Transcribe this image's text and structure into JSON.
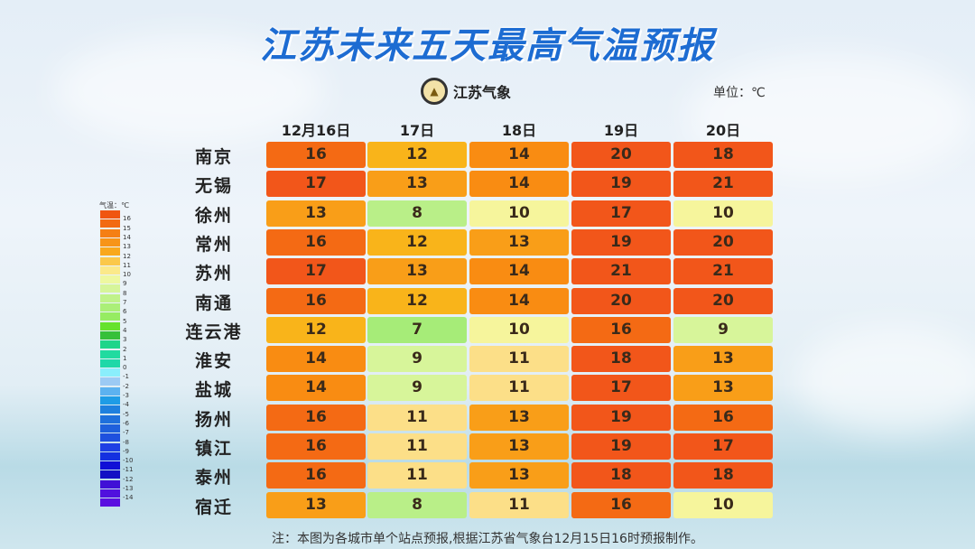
{
  "title": "江苏未来五天最高气温预报",
  "logo_text": "江苏气象",
  "unit_label": "单位：℃",
  "footnote": "注：本图为各城市单个站点预报,根据江苏省气象台12月15日16时预报制作。",
  "legend": {
    "title": "气温：℃",
    "labels": [
      "16",
      "15",
      "14",
      "13",
      "12",
      "11",
      "10",
      "9",
      "8",
      "7",
      "6",
      "5",
      "4",
      "3",
      "2",
      "1",
      "0",
      "-1",
      "-2",
      "-3",
      "-4",
      "-5",
      "-6",
      "-7",
      "-8",
      "-9",
      "-10",
      "-11",
      "-12",
      "-13",
      "-14"
    ],
    "colors": [
      "#f05510",
      "#f26a12",
      "#f57f14",
      "#f79418",
      "#f9a81c",
      "#fbc84a",
      "#fbe98a",
      "#eef8a0",
      "#d6f59a",
      "#c0f28a",
      "#abef78",
      "#96ec62",
      "#66e22c",
      "#36c03a",
      "#1ed58a",
      "#20dba0",
      "#1ed8a8",
      "#8aeefc",
      "#9ccaf4",
      "#5cb2f0",
      "#1e9ce6",
      "#1e80de",
      "#1e70dc",
      "#1e60dc",
      "#1e50de",
      "#1e40e4",
      "#1430e0",
      "#1010d6",
      "#1210c4",
      "#4010d6",
      "#5010de",
      "#5a10e0"
    ]
  },
  "chart_data": {
    "type": "table",
    "title": "江苏未来五天最高气温预报",
    "unit": "℃",
    "columns": [
      "12月16日",
      "17日",
      "18日",
      "19日",
      "20日"
    ],
    "rows": [
      {
        "city": "南京",
        "values": [
          16,
          12,
          14,
          20,
          18
        ]
      },
      {
        "city": "无锡",
        "values": [
          17,
          13,
          14,
          19,
          21
        ]
      },
      {
        "city": "徐州",
        "values": [
          13,
          8,
          10,
          17,
          10
        ]
      },
      {
        "city": "常州",
        "values": [
          16,
          12,
          13,
          19,
          20
        ]
      },
      {
        "city": "苏州",
        "values": [
          17,
          13,
          14,
          21,
          21
        ]
      },
      {
        "city": "南通",
        "values": [
          16,
          12,
          14,
          20,
          20
        ]
      },
      {
        "city": "连云港",
        "values": [
          12,
          7,
          10,
          16,
          9
        ]
      },
      {
        "city": "淮安",
        "values": [
          14,
          9,
          11,
          18,
          13
        ]
      },
      {
        "city": "盐城",
        "values": [
          14,
          9,
          11,
          17,
          13
        ]
      },
      {
        "city": "扬州",
        "values": [
          16,
          11,
          13,
          19,
          16
        ]
      },
      {
        "city": "镇江",
        "values": [
          16,
          11,
          13,
          19,
          17
        ]
      },
      {
        "city": "泰州",
        "values": [
          16,
          11,
          13,
          18,
          18
        ]
      },
      {
        "city": "宿迁",
        "values": [
          13,
          8,
          11,
          16,
          10
        ]
      }
    ]
  }
}
